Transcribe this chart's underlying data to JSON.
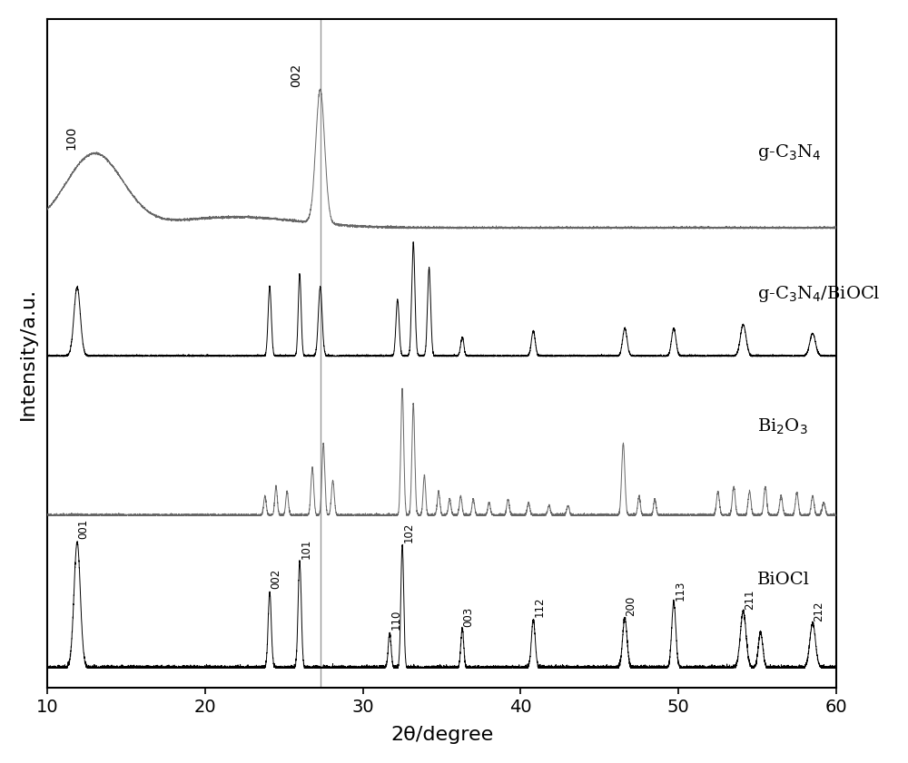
{
  "xlabel": "2θ/degree",
  "ylabel": "Intensity/a.u.",
  "xlim": [
    10,
    60
  ],
  "line_color_biocl": "#000000",
  "line_color_bi2o3": "#666666",
  "line_color_composite": "#000000",
  "line_color_gcn": "#666666",
  "vline_x": 27.3,
  "vline_color": "#999999",
  "labels": {
    "gcn": "g-C$_3$N$_4$",
    "composite": "g-C$_3$N$_4$/BiOCl",
    "bi2o3": "Bi$_2$O$_3$",
    "biocl": "BiOCl"
  }
}
